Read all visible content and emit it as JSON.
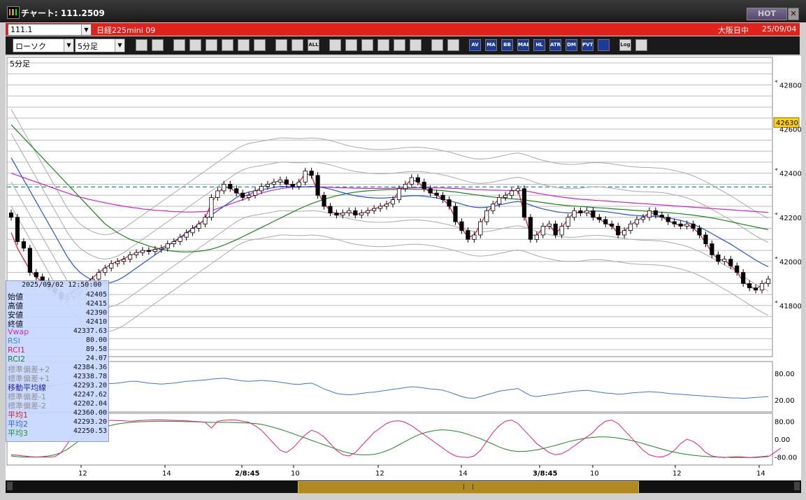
{
  "window": {
    "title": "チャート: 111.2509",
    "hot_label": "HOT",
    "close_label": "✕"
  },
  "symbolbar": {
    "symbol_code": "111.1",
    "instrument": "日経225mini 09",
    "session": "大阪日中",
    "date": "25/09/04"
  },
  "toolbar": {
    "chart_type": "ローソク",
    "interval": "5分足",
    "buttons": [
      "zoom",
      "crosshair",
      "draw-line",
      "cursor",
      "refresh",
      "print",
      "notes",
      "delete",
      "bar-left",
      "bar-right",
      "all",
      "pointer",
      "search",
      "levels",
      "vol",
      "gray",
      "palette",
      "pen",
      "rainbow",
      "av",
      "ma",
      "bb",
      "mae",
      "hl",
      "atr",
      "dm",
      "pvt",
      "sq",
      "log",
      "export"
    ],
    "button_labels": [
      "",
      "",
      "",
      "",
      "",
      "",
      "",
      "",
      "",
      "",
      "ALL",
      "",
      "",
      "",
      "",
      "",
      "",
      "",
      "",
      "AV",
      "MA",
      "BB",
      "MAE",
      "HL",
      "ATR",
      "DM",
      "PVT",
      "",
      "Log",
      ""
    ]
  },
  "chart": {
    "panel_label": "5分足",
    "current_price": "42630",
    "y_ticks": [
      "42800",
      "42600",
      "42400",
      "42200",
      "42000",
      "41800"
    ],
    "rsi_ticks": [
      "80.00",
      "20.00"
    ],
    "rci_ticks": [
      "80.00",
      "0.00",
      "-80.00"
    ],
    "x_ticks": [
      "12",
      "14",
      "2/8:45",
      "10",
      "12",
      "14",
      "3/8:45",
      "10",
      "12",
      "14"
    ],
    "colors": {
      "up": "#ffffff",
      "down": "#000000",
      "ma1": "#e0102a",
      "ma2": "#1f55d8",
      "ma3": "#138a13",
      "vwap": "#d21fd2",
      "bb": "#aaaaaa",
      "rsi": "#3a78d0",
      "rci1": "#e81e7a",
      "rci2": "#1a8a1a",
      "dash": "#2a8aa0"
    }
  },
  "chart_data": {
    "type": "candlestick",
    "ylim": [
      41600,
      42900
    ],
    "close": [
      42200,
      42090,
      42060,
      41950,
      41930,
      41910,
      41880,
      41860,
      41830,
      41840,
      41860,
      41880,
      41900,
      41920,
      41950,
      41970,
      41990,
      42000,
      42010,
      42030,
      42040,
      42050,
      42045,
      42055,
      42060,
      42080,
      42090,
      42110,
      42130,
      42150,
      42170,
      42200,
      42290,
      42320,
      42350,
      42330,
      42310,
      42290,
      42300,
      42320,
      42340,
      42350,
      42360,
      42370,
      42350,
      42340,
      42360,
      42410,
      42390,
      42300,
      42250,
      42220,
      42210,
      42220,
      42230,
      42210,
      42220,
      42230,
      42240,
      42250,
      42260,
      42280,
      42330,
      42350,
      42380,
      42360,
      42330,
      42310,
      42300,
      42280,
      42250,
      42180,
      42140,
      42100,
      42120,
      42180,
      42230,
      42260,
      42290,
      42300,
      42320,
      42330,
      42200,
      42100,
      42120,
      42160,
      42170,
      42120,
      42160,
      42200,
      42230,
      42220,
      42230,
      42200,
      42190,
      42170,
      42160,
      42120,
      42140,
      42170,
      42190,
      42200,
      42230,
      42210,
      42200,
      42180,
      42170,
      42160,
      42170,
      42150,
      42120,
      42080,
      42030,
      42000,
      42010,
      41980,
      41950,
      41900,
      41880,
      41870,
      41900,
      41920
    ],
    "ma1": [
      42130,
      42060,
      42010,
      41960,
      41930,
      41905,
      41880,
      41860,
      41845,
      41850,
      41865,
      41885,
      41905,
      41925,
      41950,
      41970,
      41988,
      42000,
      42012,
      42028,
      42038,
      42048,
      42048,
      42054,
      42060,
      42076,
      42088,
      42106,
      42126,
      42146,
      42166,
      42194,
      42266,
      42308,
      42338,
      42332,
      42314,
      42296,
      42302,
      42318,
      42336,
      42348,
      42358,
      42366,
      42352,
      42344,
      42358,
      42400,
      42388,
      42314,
      42262,
      42230,
      42214,
      42218,
      42226,
      42212,
      42218,
      42228,
      42238,
      42248,
      42258,
      42276,
      42320,
      42344,
      42372,
      42360,
      42334,
      42314,
      42302,
      42282,
      42254,
      42194,
      42150,
      42110,
      42118,
      42168,
      42220,
      42254,
      42284,
      42298,
      42316,
      42328,
      42216,
      42120,
      42118,
      42154,
      42166,
      42128,
      42154,
      42192,
      42224,
      42220,
      42228,
      42204,
      42192,
      42174,
      42162,
      42126,
      42138,
      42164,
      42186,
      42198,
      42224,
      42212,
      42202,
      42184,
      42172,
      42162,
      42168,
      42152,
      42124,
      42086,
      42040,
      42008,
      42006,
      41982,
      41954,
      41908,
      41886,
      41874,
      41894,
      41912
    ],
    "ma2": [
      42470,
      42420,
      42370,
      42320,
      42270,
      42220,
      42170,
      42120,
      42070,
      42020,
      41980,
      41950,
      41930,
      41915,
      41905,
      41900,
      41905,
      41915,
      41930,
      41950,
      41970,
      41990,
      42010,
      42030,
      42050,
      42070,
      42090,
      42110,
      42130,
      42150,
      42170,
      42190,
      42210,
      42230,
      42250,
      42270,
      42290,
      42305,
      42315,
      42320,
      42325,
      42330,
      42335,
      42340,
      42340,
      42338,
      42337,
      42338,
      42340,
      42338,
      42334,
      42328,
      42320,
      42312,
      42304,
      42298,
      42294,
      42290,
      42288,
      42287,
      42288,
      42290,
      42293,
      42296,
      42298,
      42298,
      42296,
      42292,
      42288,
      42282,
      42276,
      42268,
      42260,
      42252,
      42246,
      42244,
      42246,
      42250,
      42256,
      42262,
      42268,
      42272,
      42266,
      42256,
      42246,
      42238,
      42232,
      42226,
      42222,
      42220,
      42220,
      42222,
      42226,
      42228,
      42228,
      42226,
      42222,
      42218,
      42214,
      42210,
      42208,
      42206,
      42206,
      42204,
      42202,
      42198,
      42192,
      42186,
      42178,
      42168,
      42156,
      42142,
      42126,
      42110,
      42094,
      42078,
      42060,
      42042,
      42024,
      42006,
      41990,
      41976
    ],
    "ma3": [
      42620,
      42590,
      42560,
      42530,
      42500,
      42470,
      42440,
      42410,
      42380,
      42350,
      42320,
      42290,
      42260,
      42230,
      42200,
      42170,
      42150,
      42130,
      42115,
      42100,
      42090,
      42080,
      42070,
      42062,
      42056,
      42050,
      42046,
      42044,
      42043,
      42044,
      42046,
      42050,
      42056,
      42064,
      42074,
      42086,
      42098,
      42112,
      42126,
      42140,
      42154,
      42168,
      42182,
      42196,
      42210,
      42224,
      42238,
      42250,
      42262,
      42272,
      42282,
      42290,
      42298,
      42304,
      42310,
      42314,
      42318,
      42320,
      42322,
      42324,
      42325,
      42326,
      42327,
      42328,
      42328,
      42327,
      42326,
      42325,
      42323,
      42321,
      42318,
      42315,
      42311,
      42307,
      42303,
      42299,
      42295,
      42292,
      42289,
      42286,
      42284,
      42282,
      42279,
      42275,
      42271,
      42267,
      42263,
      42259,
      42256,
      42253,
      42251,
      42249,
      42247,
      42245,
      42243,
      42241,
      42239,
      42237,
      42235,
      42233,
      42231,
      42229,
      42227,
      42225,
      42223,
      42221,
      42219,
      42216,
      42213,
      42210,
      42206,
      42202,
      42197,
      42192,
      42186,
      42180,
      42174,
      42168,
      42162,
      42156,
      42150,
      42144
    ],
    "vwap": [
      42400,
      42390,
      42380,
      42370,
      42360,
      42350,
      42340,
      42330,
      42320,
      42310,
      42300,
      42292,
      42285,
      42278,
      42272,
      42266,
      42260,
      42255,
      42250,
      42246,
      42242,
      42238,
      42235,
      42232,
      42230,
      42228,
      42226,
      42225,
      42224,
      42224,
      42225,
      42226,
      42230,
      42240,
      42250,
      42260,
      42270,
      42280,
      42290,
      42300,
      42310,
      42318,
      42324,
      42330,
      42334,
      42336,
      42337,
      42338,
      42338,
      42338,
      42337,
      42336,
      42335,
      42334,
      42333,
      42332,
      42332,
      42331,
      42331,
      42331,
      42331,
      42332,
      42332,
      42333,
      42334,
      42334,
      42334,
      42334,
      42333,
      42333,
      42332,
      42331,
      42330,
      42328,
      42326,
      42325,
      42324,
      42323,
      42323,
      42322,
      42322,
      42322,
      42320,
      42316,
      42310,
      42305,
      42300,
      42296,
      42292,
      42288,
      42285,
      42282,
      42280,
      42278,
      42276,
      42274,
      42272,
      42270,
      42268,
      42266,
      42264,
      42262,
      42260,
      42258,
      42256,
      42254,
      42252,
      42250,
      42248,
      42246,
      42244,
      42242,
      42240,
      42238,
      42236,
      42234,
      42232,
      42230,
      42228,
      42226,
      42224,
      42222
    ],
    "bb_offsets": [
      110,
      220
    ],
    "rsi": [
      62,
      60,
      58,
      55,
      53,
      52,
      50,
      52,
      55,
      58,
      60,
      62,
      63,
      62,
      60,
      58,
      57,
      58,
      60,
      62,
      62,
      60,
      58,
      57,
      56,
      57,
      58,
      60,
      62,
      63,
      64,
      65,
      67,
      68,
      69,
      67,
      65,
      63,
      62,
      63,
      64,
      63,
      62,
      60,
      58,
      56,
      55,
      57,
      58,
      52,
      45,
      40,
      35,
      33,
      32,
      33,
      35,
      37,
      38,
      40,
      42,
      44,
      46,
      48,
      50,
      49,
      47,
      45,
      44,
      42,
      38,
      33,
      28,
      25,
      24,
      28,
      32,
      36,
      40,
      42,
      44,
      46,
      38,
      30,
      28,
      30,
      32,
      34,
      36,
      38,
      40,
      41,
      42,
      40,
      38,
      36,
      35,
      33,
      34,
      36,
      37,
      38,
      39,
      38,
      37,
      35,
      34,
      33,
      32,
      31,
      30,
      29,
      28,
      27,
      26,
      25,
      25,
      24,
      25,
      26,
      27,
      28
    ],
    "rci1": [
      -70,
      -72,
      -75,
      -78,
      -80,
      -80,
      -80,
      -78,
      -60,
      -20,
      20,
      50,
      70,
      80,
      82,
      84,
      84,
      83,
      82,
      80,
      82,
      84,
      85,
      86,
      86,
      85,
      84,
      83,
      82,
      80,
      78,
      75,
      50,
      80,
      84,
      86,
      85,
      80,
      75,
      60,
      40,
      10,
      -20,
      -50,
      -60,
      -40,
      -10,
      20,
      40,
      30,
      10,
      -20,
      -50,
      -70,
      -75,
      -60,
      -30,
      0,
      30,
      50,
      70,
      80,
      82,
      75,
      60,
      40,
      20,
      0,
      -20,
      -40,
      -60,
      -75,
      -80,
      -82,
      -75,
      -50,
      -10,
      30,
      60,
      80,
      85,
      70,
      40,
      10,
      -20,
      -40,
      -60,
      -70,
      -65,
      -50,
      -30,
      -10,
      10,
      30,
      60,
      80,
      85,
      70,
      40,
      10,
      -20,
      -50,
      -70,
      -78,
      -80,
      -70,
      -50,
      -20,
      0,
      -10,
      -30,
      -60,
      -75,
      -80,
      -82,
      -80,
      -78,
      -80,
      -82,
      -82,
      -80,
      -78,
      -60,
      -40
    ],
    "rci2": [
      -75,
      -78,
      -80,
      -80,
      -80,
      -78,
      -75,
      -70,
      -60,
      -45,
      -25,
      -5,
      15,
      30,
      45,
      55,
      62,
      68,
      72,
      75,
      77,
      78,
      79,
      80,
      80,
      80,
      80,
      79,
      78,
      78,
      77,
      76,
      75,
      75,
      75,
      75,
      74,
      73,
      72,
      70,
      66,
      60,
      52,
      44,
      35,
      25,
      15,
      5,
      -5,
      -15,
      -25,
      -35,
      -45,
      -55,
      -62,
      -68,
      -70,
      -70,
      -68,
      -62,
      -52,
      -40,
      -25,
      -10,
      5,
      18,
      28,
      35,
      40,
      42,
      40,
      36,
      30,
      22,
      12,
      2,
      -10,
      -22,
      -35,
      -45,
      -52,
      -55,
      -55,
      -52,
      -48,
      -42,
      -35,
      -28,
      -20,
      -12,
      -5,
      0,
      5,
      8,
      10,
      10,
      8,
      5,
      0,
      -5,
      -12,
      -20,
      -28,
      -36,
      -44,
      -52,
      -58,
      -64,
      -68,
      -72,
      -75,
      -77,
      -79,
      -80,
      -81,
      -82,
      -82,
      -82,
      -82,
      -80,
      -78,
      -75
    ]
  },
  "info_panel": {
    "datetime": "2025/09/02  12:50:00",
    "rows": [
      {
        "label": "始値",
        "value": "42405",
        "color": "#000000"
      },
      {
        "label": "高値",
        "value": "42415",
        "color": "#000000"
      },
      {
        "label": "安値",
        "value": "42390",
        "color": "#000000"
      },
      {
        "label": "終値",
        "value": "42410",
        "color": "#000000"
      },
      {
        "label": "Vwap",
        "value": "42337.63",
        "color": "#c018c0"
      },
      {
        "label": "RSI",
        "value": "80.00",
        "color": "#3a78d0"
      },
      {
        "label": "RCI1",
        "value": "89.58",
        "color": "#d0105a"
      },
      {
        "label": "RCI2",
        "value": "24.07",
        "color": "#1a7a1a"
      },
      {
        "label": "標準偏差+2",
        "value": "42384.36",
        "color": "#8a8a8a"
      },
      {
        "label": "標準偏差+1",
        "value": "42338.78",
        "color": "#8a8a8a"
      },
      {
        "label": "移動平均線",
        "value": "42293.20",
        "color": "#1010a0"
      },
      {
        "label": "標準偏差-1",
        "value": "42247.62",
        "color": "#8a8a8a"
      },
      {
        "label": "標準偏差-2",
        "value": "42202.04",
        "color": "#8a8a8a"
      },
      {
        "label": "平均1",
        "value": "42360.00",
        "color": "#d01010"
      },
      {
        "label": "平均2",
        "value": "42293.20",
        "color": "#1f55d8"
      },
      {
        "label": "平均3",
        "value": "42250.53",
        "color": "#138a13"
      }
    ]
  }
}
